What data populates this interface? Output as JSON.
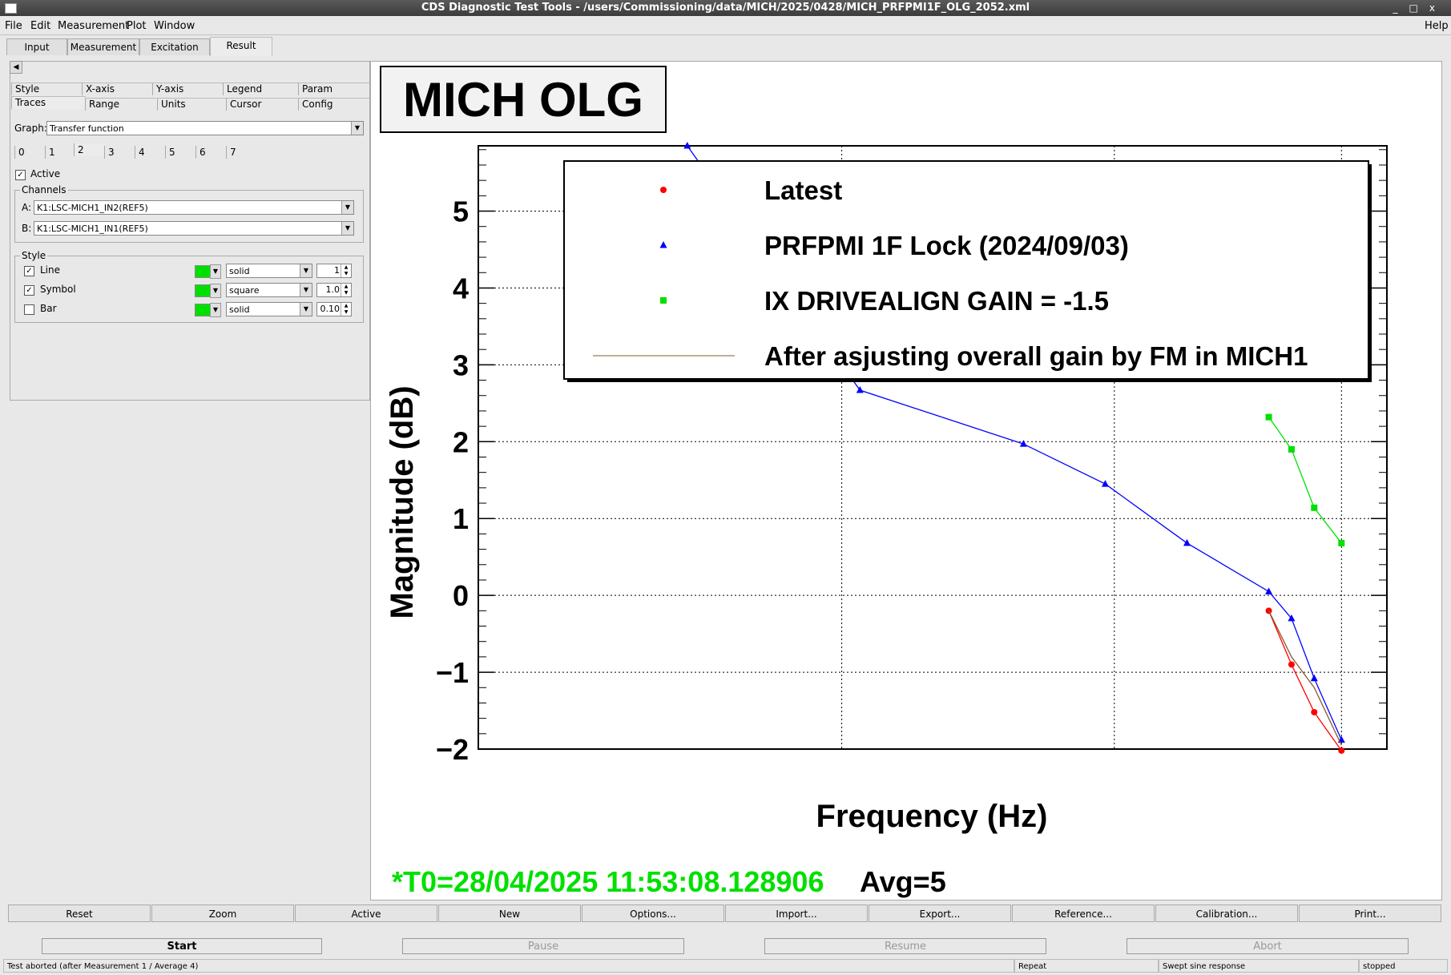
{
  "window": {
    "title": "CDS Diagnostic Test Tools - /users/Commissioning/data/MICH/2025/0428/MICH_PRFPMI1F_OLG_2052.xml",
    "controls": [
      "_",
      "□",
      "x"
    ]
  },
  "menu": {
    "items": [
      "File",
      "Edit",
      "Measurement",
      "Plot",
      "Window"
    ],
    "help": "Help"
  },
  "main_tabs": [
    "Input",
    "Measurement",
    "Excitation",
    "Result"
  ],
  "settings_tabs_row1": [
    "Style",
    "X-axis",
    "Y-axis",
    "Legend",
    "Param"
  ],
  "settings_tabs_row2": [
    "Traces",
    "Range",
    "Units",
    "Cursor",
    "Config"
  ],
  "graph": {
    "label": "Graph:",
    "value": "Transfer function"
  },
  "trace_tabs": [
    "0",
    "1",
    "2",
    "3",
    "4",
    "5",
    "6",
    "7"
  ],
  "active": {
    "label": "Active",
    "checked": true
  },
  "channels": {
    "title": "Channels",
    "a_label": "A:",
    "a_value": "K1:LSC-MICH1_IN2(REF5)",
    "b_label": "B:",
    "b_value": "K1:LSC-MICH1_IN1(REF5)"
  },
  "style": {
    "title": "Style",
    "rows": [
      {
        "label": "Line",
        "checked": true,
        "color": "#00e000",
        "type": "solid",
        "value": "1"
      },
      {
        "label": "Symbol",
        "checked": true,
        "color": "#00e000",
        "type": "square",
        "value": "1.0"
      },
      {
        "label": "Bar",
        "checked": false,
        "color": "#00e000",
        "type": "solid",
        "value": "0.10"
      }
    ]
  },
  "plot_buttons": [
    "Reset",
    "Zoom",
    "Active",
    "New",
    "Options...",
    "Import...",
    "Export...",
    "Reference...",
    "Calibration...",
    "Print..."
  ],
  "control_buttons": [
    {
      "label": "Start",
      "enabled": true
    },
    {
      "label": "Pause",
      "enabled": false
    },
    {
      "label": "Resume",
      "enabled": false
    },
    {
      "label": "Abort",
      "enabled": false
    }
  ],
  "status_bar": [
    "Test aborted (after Measurement 1 / Average 4)",
    "Repeat",
    "Swept sine response",
    "stopped"
  ],
  "plot_info": {
    "t0": "*T0=28/04/2025 11:53:08.128906",
    "avg": "Avg=5"
  },
  "chart_data": {
    "type": "line",
    "title": "MICH OLG",
    "xlabel": "Frequency (Hz)",
    "ylabel": "Magnitude (dB)",
    "ylim": [
      -2,
      5.85
    ],
    "yticks": [
      "5",
      "4",
      "3",
      "2",
      "1",
      "0",
      "−1",
      "−2"
    ],
    "grid": true,
    "legend_position": "top-right",
    "series": [
      {
        "name": "Latest",
        "color": "#ff0000",
        "marker": "circle",
        "points": [
          [
            0.87,
            -0.2
          ],
          [
            0.895,
            -0.9
          ],
          [
            0.92,
            -1.52
          ],
          [
            0.95,
            -2.02
          ]
        ]
      },
      {
        "name": "PRFPMI 1F Lock (2024/09/03)",
        "color": "#0000ff",
        "marker": "triangle",
        "points": [
          [
            0.23,
            5.85
          ],
          [
            0.42,
            2.67
          ],
          [
            0.6,
            1.97
          ],
          [
            0.69,
            1.45
          ],
          [
            0.78,
            0.68
          ],
          [
            0.87,
            0.05
          ],
          [
            0.895,
            -0.3
          ],
          [
            0.92,
            -1.08
          ],
          [
            0.95,
            -1.88
          ]
        ]
      },
      {
        "name": "IX DRIVEALIGN GAIN = -1.5",
        "color": "#00e000",
        "marker": "square",
        "points": [
          [
            0.87,
            2.32
          ],
          [
            0.895,
            1.9
          ],
          [
            0.92,
            1.14
          ],
          [
            0.95,
            0.68
          ]
        ]
      },
      {
        "name": "After asjusting overall gain by FM in MICH1",
        "color": "#8b5a2b",
        "marker": "none",
        "points": [
          [
            0.87,
            -0.2
          ],
          [
            0.895,
            -0.8
          ],
          [
            0.92,
            -1.2
          ],
          [
            0.95,
            -1.95
          ]
        ]
      }
    ]
  }
}
